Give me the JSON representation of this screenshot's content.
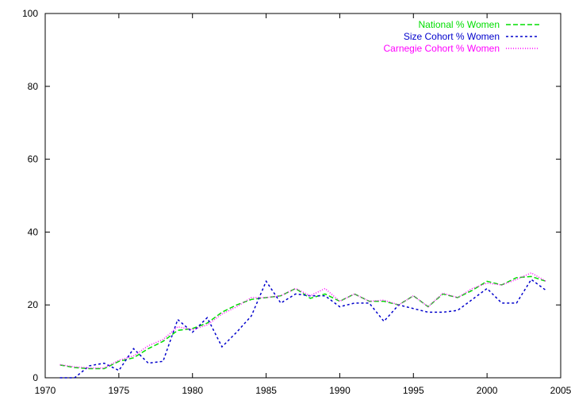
{
  "chart_data": {
    "type": "line",
    "title": "",
    "xlabel": "",
    "ylabel": "",
    "xlim": [
      1970,
      2005
    ],
    "ylim": [
      0,
      100
    ],
    "xticks": [
      1970,
      1975,
      1980,
      1985,
      1990,
      1995,
      2000,
      2005
    ],
    "yticks": [
      0,
      20,
      40,
      60,
      80,
      100
    ],
    "grid": false,
    "legend_position": "top-right",
    "x": [
      1971,
      1972,
      1973,
      1974,
      1975,
      1976,
      1977,
      1978,
      1979,
      1980,
      1981,
      1982,
      1983,
      1984,
      1985,
      1986,
      1987,
      1988,
      1989,
      1990,
      1991,
      1992,
      1993,
      1994,
      1995,
      1996,
      1997,
      1998,
      1999,
      2000,
      2001,
      2002,
      2003,
      2004
    ],
    "series": [
      {
        "name": "National % Women",
        "color": "#00dd00",
        "dash": "6,3",
        "values": [
          3.5,
          2.8,
          2.5,
          2.5,
          4.5,
          5.5,
          8.0,
          10.0,
          13.0,
          13.5,
          15.0,
          18.0,
          20.0,
          21.5,
          22.0,
          22.5,
          24.5,
          21.8,
          23.0,
          21.0,
          23.0,
          21.0,
          21.0,
          20.0,
          22.5,
          19.5,
          23.0,
          22.0,
          24.0,
          26.5,
          25.5,
          27.5,
          27.8,
          26.5
        ]
      },
      {
        "name": "Size Cohort % Women",
        "color": "#0000cc",
        "dash": "3,3",
        "values": [
          0.0,
          0.0,
          3.3,
          4.0,
          2.0,
          8.0,
          4.0,
          4.5,
          16.0,
          12.5,
          16.5,
          8.5,
          12.5,
          17.0,
          26.5,
          20.5,
          23.0,
          22.5,
          22.5,
          19.5,
          20.5,
          20.5,
          15.5,
          20.0,
          19.0,
          18.0,
          18.0,
          18.5,
          21.5,
          24.5,
          20.5,
          20.5,
          27.0,
          24.0
        ]
      },
      {
        "name": "Carnegie Cohort % Women",
        "color": "#ff00ff",
        "dash": "1,2",
        "values": [
          3.6,
          3.0,
          2.7,
          2.7,
          4.8,
          6.0,
          8.8,
          10.5,
          14.0,
          13.2,
          14.5,
          17.5,
          19.5,
          22.0,
          22.0,
          22.5,
          24.5,
          22.5,
          24.5,
          21.0,
          23.0,
          21.0,
          21.3,
          20.0,
          22.5,
          19.5,
          23.2,
          22.0,
          24.5,
          26.0,
          25.5,
          27.0,
          28.8,
          26.5
        ]
      }
    ]
  }
}
